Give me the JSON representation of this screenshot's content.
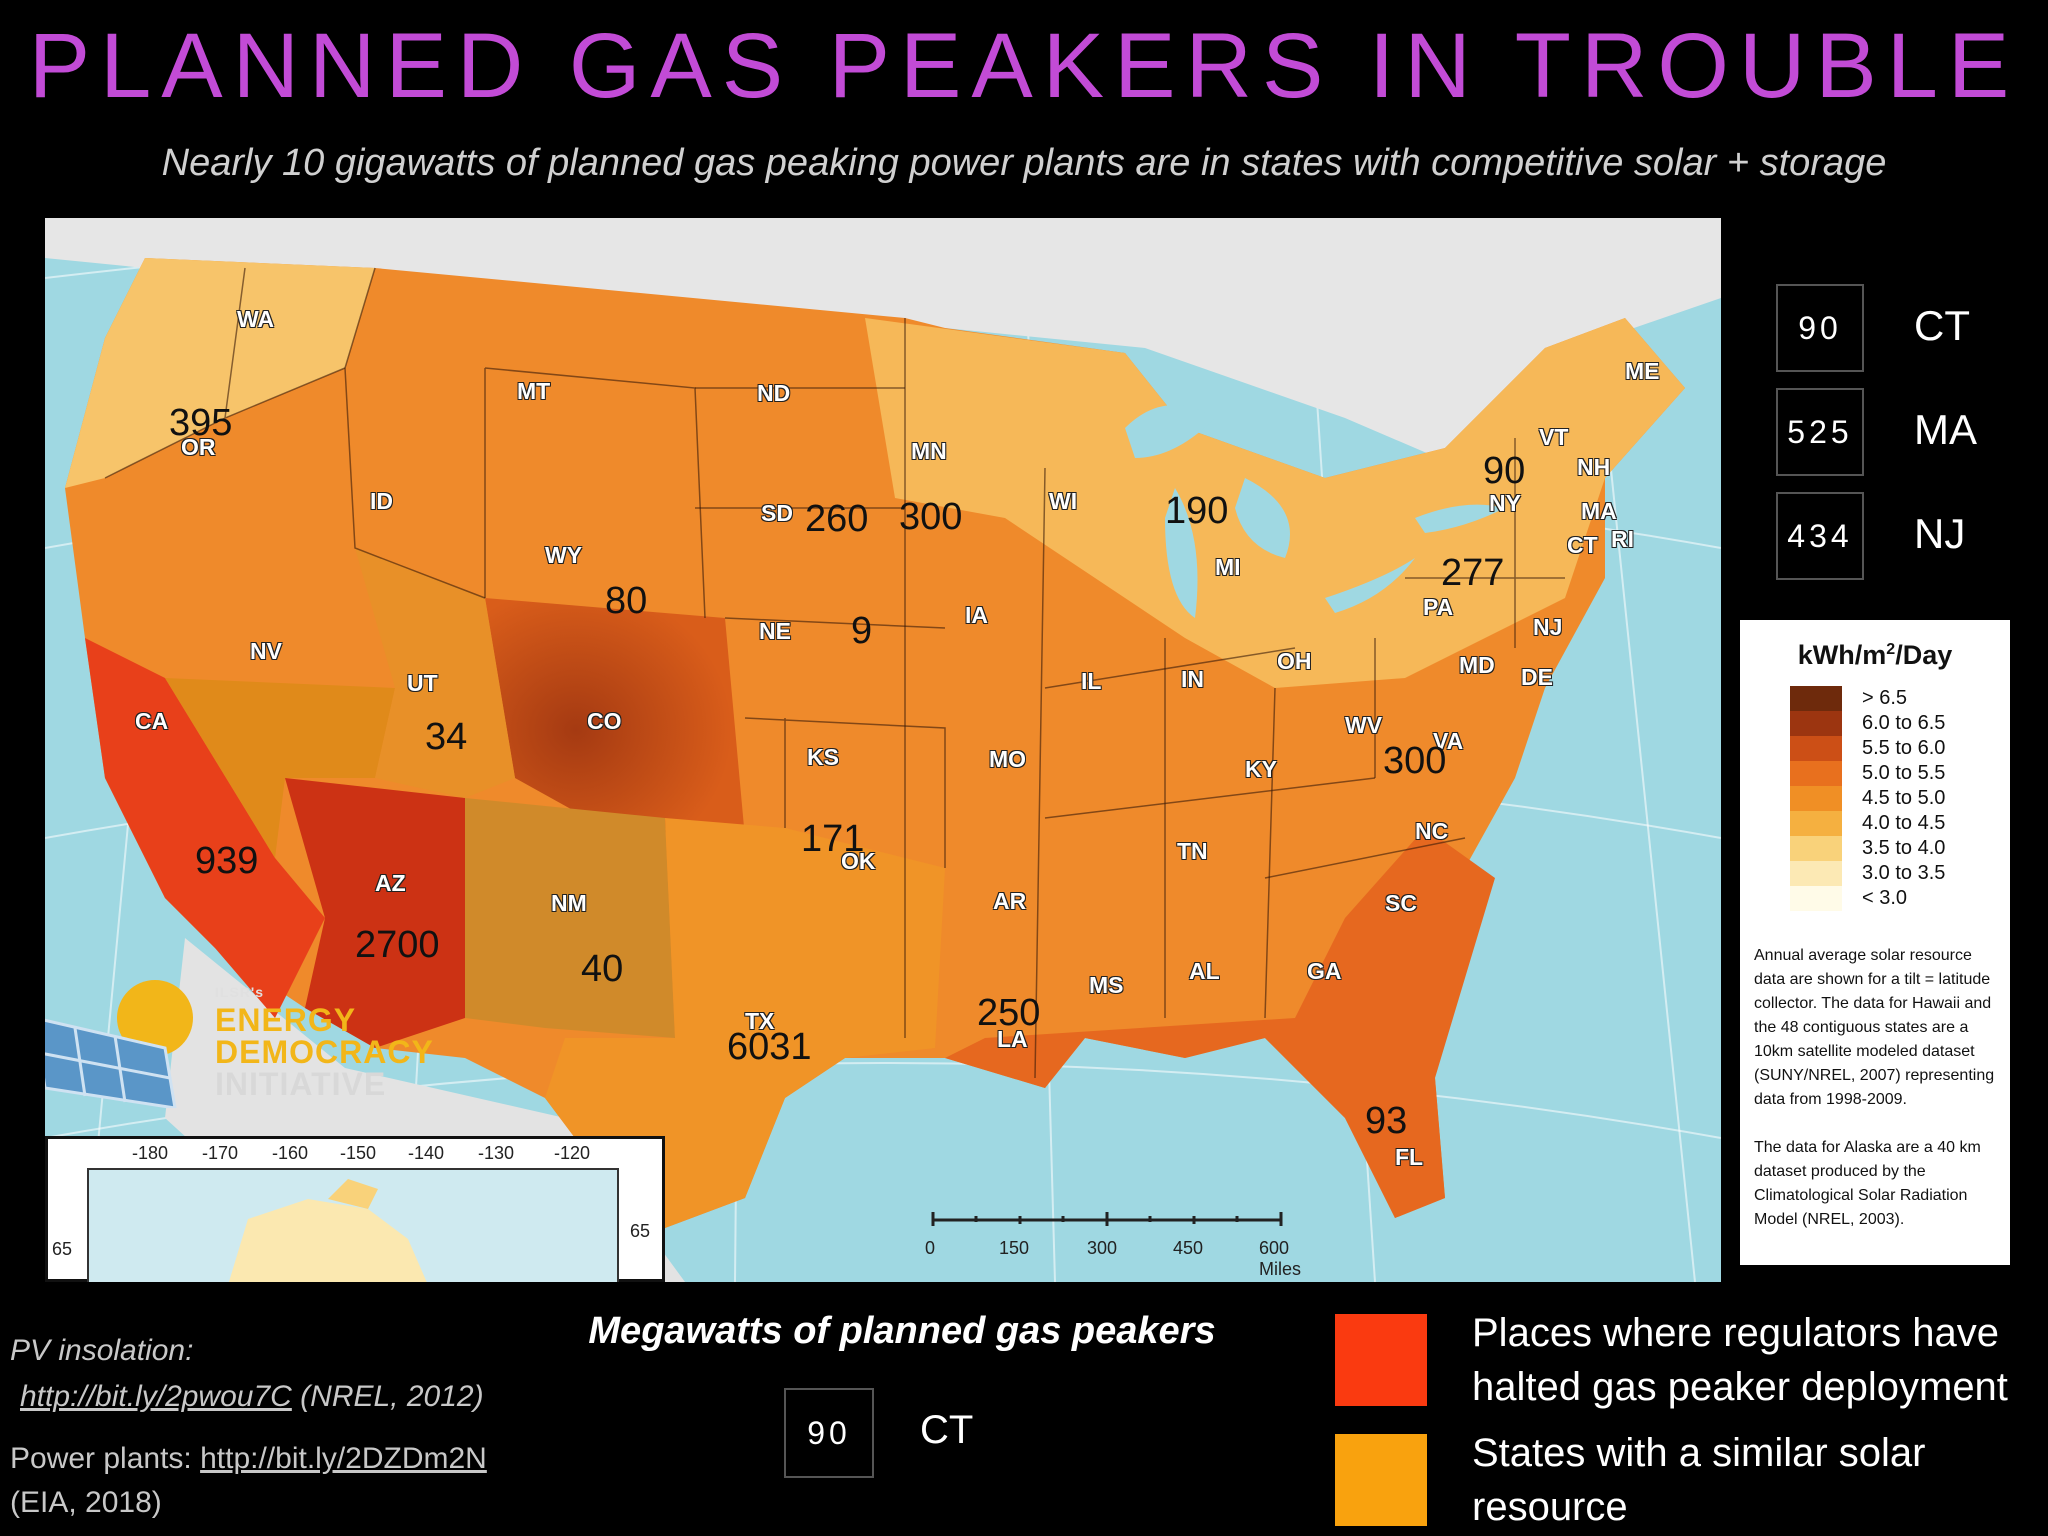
{
  "header": {
    "title": "PLANNED GAS PEAKERS IN TROUBLE",
    "subtitle": "Nearly 10 gigawatts of planned gas peaking power plants are in states with competitive solar + storage"
  },
  "state_labels": [
    {
      "name": "WA"
    },
    {
      "name": "OR"
    },
    {
      "name": "CA"
    },
    {
      "name": "NV"
    },
    {
      "name": "ID"
    },
    {
      "name": "MT"
    },
    {
      "name": "WY"
    },
    {
      "name": "UT"
    },
    {
      "name": "AZ"
    },
    {
      "name": "CO"
    },
    {
      "name": "NM"
    },
    {
      "name": "ND"
    },
    {
      "name": "SD"
    },
    {
      "name": "NE"
    },
    {
      "name": "KS"
    },
    {
      "name": "OK"
    },
    {
      "name": "TX"
    },
    {
      "name": "MN"
    },
    {
      "name": "IA"
    },
    {
      "name": "MO"
    },
    {
      "name": "AR"
    },
    {
      "name": "LA"
    },
    {
      "name": "WI"
    },
    {
      "name": "IL"
    },
    {
      "name": "MI"
    },
    {
      "name": "IN"
    },
    {
      "name": "OH"
    },
    {
      "name": "KY"
    },
    {
      "name": "TN"
    },
    {
      "name": "MS"
    },
    {
      "name": "AL"
    },
    {
      "name": "GA"
    },
    {
      "name": "FL"
    },
    {
      "name": "SC"
    },
    {
      "name": "NC"
    },
    {
      "name": "VA"
    },
    {
      "name": "WV"
    },
    {
      "name": "PA"
    },
    {
      "name": "NY"
    },
    {
      "name": "VT"
    },
    {
      "name": "NH"
    },
    {
      "name": "ME"
    },
    {
      "name": "MA"
    },
    {
      "name": "CT"
    },
    {
      "name": "RI"
    },
    {
      "name": "NJ"
    },
    {
      "name": "DE"
    },
    {
      "name": "MD"
    }
  ],
  "megawatt_labels": [
    {
      "state": "OR",
      "value": "395"
    },
    {
      "state": "CA",
      "value": "939"
    },
    {
      "state": "AZ",
      "value": "2700"
    },
    {
      "state": "UT",
      "value": "34"
    },
    {
      "state": "WY",
      "value": "80"
    },
    {
      "state": "NM",
      "value": "40"
    },
    {
      "state": "TX",
      "value": "6031"
    },
    {
      "state": "OK",
      "value": "171"
    },
    {
      "state": "NE",
      "value": "9"
    },
    {
      "state": "SD",
      "value": "260"
    },
    {
      "state": "MN",
      "value": "300"
    },
    {
      "state": "MI",
      "value": "190"
    },
    {
      "state": "NY",
      "value": "90"
    },
    {
      "state": "PA",
      "value": "277"
    },
    {
      "state": "VA",
      "value": "300"
    },
    {
      "state": "LA",
      "value": "250"
    },
    {
      "state": "FL",
      "value": "93"
    }
  ],
  "side_key": [
    {
      "value": "90",
      "state": "CT"
    },
    {
      "value": "525",
      "state": "MA"
    },
    {
      "value": "434",
      "state": "NJ"
    }
  ],
  "legend": {
    "title_main": "kWh/m",
    "title_sup": "2",
    "title_tail": "/Day",
    "classes": [
      {
        "label": "> 6.5",
        "color": "#6e2a0c"
      },
      {
        "label": "6.0 to 6.5",
        "color": "#9c3510"
      },
      {
        "label": "5.5 to 6.0",
        "color": "#cc4f16"
      },
      {
        "label": "5.0 to 5.5",
        "color": "#e8701e"
      },
      {
        "label": "4.5 to 5.0",
        "color": "#f08f25"
      },
      {
        "label": "4.0 to 4.5",
        "color": "#f5b040"
      },
      {
        "label": "3.5 to 4.0",
        "color": "#f9d27a"
      },
      {
        "label": "3.0 to 3.5",
        "color": "#fce9b4"
      },
      {
        "label": "< 3.0",
        "color": "#fffbe8"
      }
    ],
    "note1": "Annual average solar resource data are shown for a tilt = latitude collector. The data for Hawaii and the 48 contiguous states are a 10km satellite modeled dataset (SUNY/NREL, 2007) representing data from 1998-2009.",
    "note2": "The data for Alaska are a 40 km dataset produced by the Climatological Solar Radiation Model (NREL, 2003)."
  },
  "scale_bar": {
    "ticks": [
      "0",
      "150",
      "300",
      "450",
      "600 Miles"
    ]
  },
  "inset": {
    "lon_ticks": [
      "-180",
      "-170",
      "-160",
      "-150",
      "-140",
      "-130",
      "-120"
    ],
    "lat_left": "65",
    "lat_right": "65"
  },
  "logo": {
    "small": "ILSR's",
    "line1": "ENERGY",
    "line2": "DEMOCRACY",
    "line3": "INITIATIVE"
  },
  "sources": {
    "pv_label": "PV insolation:",
    "pv_link": "http://bit.ly/2pwou7C",
    "pv_cite": " (NREL, 2012)",
    "plants_label": "Power plants: ",
    "plants_link": "http://bit.ly/2DZDm2N",
    "plants_cite": "(EIA, 2018)"
  },
  "bottom_key": {
    "caption": "Megawatts of planned gas peakers",
    "value": "90",
    "state": "CT"
  },
  "categories": [
    {
      "label": "Places where regulators have halted gas peaker deployment",
      "color": "#fa3a10"
    },
    {
      "label": "States with a similar solar resource",
      "color": "#f9a20e"
    }
  ]
}
